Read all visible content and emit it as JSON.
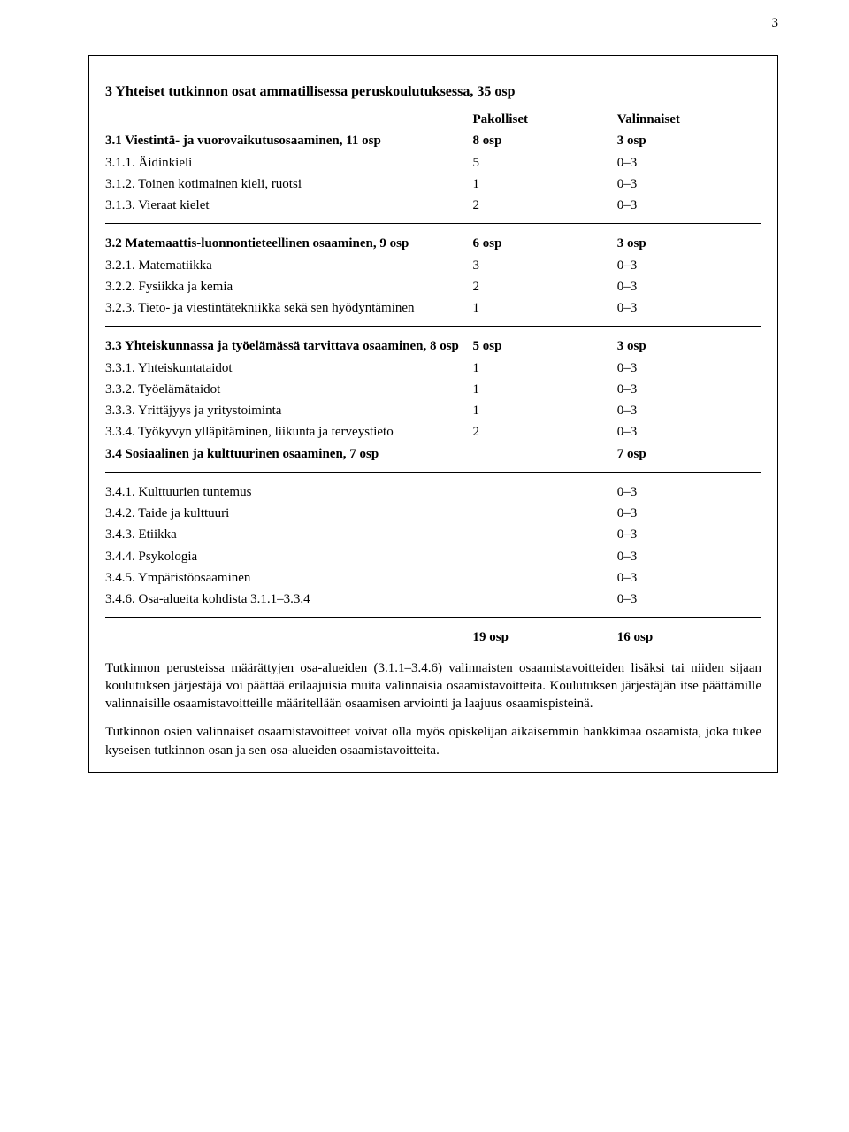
{
  "page_number": "3",
  "box": {
    "title": "3 Yhteiset tutkinnon osat ammatillisessa peruskoulutuksessa, 35 osp",
    "header_col_a": "Pakolliset",
    "header_col_b": "Valinnaiset",
    "s31_title": "3.1 Viestintä- ja vuorovaikutusosaaminen, 11 osp",
    "s31_col_a": "8 osp",
    "s31_col_b": "3 osp",
    "r311_label": "3.1.1. Äidinkieli",
    "r311_a": "5",
    "r311_b": "0–3",
    "r312_label": "3.1.2. Toinen kotimainen kieli, ruotsi",
    "r312_a": "1",
    "r312_b": "0–3",
    "r313_label": "3.1.3. Vieraat kielet",
    "r313_a": "2",
    "r313_b": "0–3",
    "s32_title": "3.2 Matemaattis-luonnontieteellinen osaaminen, 9 osp",
    "s32_col_a": "6 osp",
    "s32_col_b": "3 osp",
    "r321_label": "3.2.1. Matematiikka",
    "r321_a": "3",
    "r321_b": "0–3",
    "r322_label": "3.2.2. Fysiikka ja kemia",
    "r322_a": "2",
    "r322_b": "0–3",
    "r323_label": "3.2.3. Tieto- ja viestintätekniikka sekä sen hyödyntäminen",
    "r323_a": "1",
    "r323_b": "0–3",
    "s33_title": "3.3 Yhteiskunnassa ja työelämässä tarvittava osaaminen, 8 osp",
    "s33_col_a": "5 osp",
    "s33_col_b": "3 osp",
    "r331_label": "3.3.1. Yhteiskuntataidot",
    "r331_a": "1",
    "r331_b": "0–3",
    "r332_label": "3.3.2. Työelämätaidot",
    "r332_a": "1",
    "r332_b": "0–3",
    "r333_label": "3.3.3. Yrittäjyys ja yritystoiminta",
    "r333_a": "1",
    "r333_b": "0–3",
    "r334_label": "3.3.4. Työkyvyn ylläpitäminen, liikunta ja terveystieto",
    "r334_a": "2",
    "r334_b": "0–3",
    "s34_title": "3.4 Sosiaalinen ja kulttuurinen osaaminen, 7 osp",
    "s34_col_b": "7 osp",
    "r341_label": "3.4.1. Kulttuurien tuntemus",
    "r341_b": "0–3",
    "r342_label": "3.4.2. Taide ja kulttuuri",
    "r342_b": "0–3",
    "r343_label": "3.4.3. Etiikka",
    "r343_b": "0–3",
    "r344_label": "3.4.4. Psykologia",
    "r344_b": "0–3",
    "r345_label": "3.4.5. Ympäristöosaaminen",
    "r345_b": "0–3",
    "r346_label": "3.4.6. Osa-alueita kohdista 3.1.1–3.3.4",
    "r346_b": "0–3",
    "total_a": "19 osp",
    "total_b": "16 osp",
    "p1": "Tutkinnon perusteissa määrättyjen osa-alueiden (3.1.1–3.4.6) valinnaisten osaamistavoitteiden lisäksi tai niiden sijaan koulutuksen järjestäjä voi päättää erilaajuisia muita valinnaisia osaamistavoitteita. Koulutuksen järjestäjän itse päättämille valinnaisille osaamistavoitteille määritellään osaamisen arviointi ja laajuus osaamispisteinä.",
    "p2": "Tutkinnon osien valinnaiset osaamistavoitteet voivat olla myös opiskelijan aikaisemmin hankkimaa osaamista, joka tukee kyseisen tutkinnon osan ja sen osa-alueiden osaamistavoitteita."
  }
}
